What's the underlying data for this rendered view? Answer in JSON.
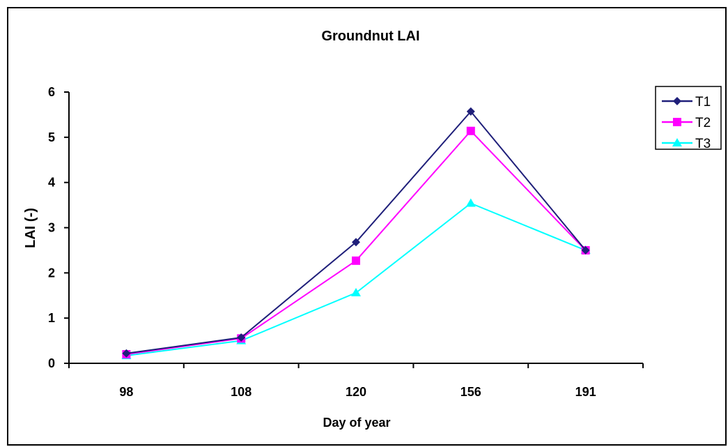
{
  "chart_data": {
    "type": "line",
    "title": "Groundnut LAI",
    "xlabel": "Day of year",
    "ylabel": "LAI (-)",
    "categories": [
      "98",
      "108",
      "120",
      "156",
      "191"
    ],
    "ylim": [
      0,
      6
    ],
    "yticks": [
      "0",
      "1",
      "2",
      "3",
      "4",
      "5",
      "6"
    ],
    "grid": false,
    "legend_position": "top-right",
    "series": [
      {
        "name": "T1",
        "values": [
          0.22,
          0.57,
          2.68,
          5.57,
          2.5
        ],
        "color": "#1f1f7a",
        "marker": "diamond"
      },
      {
        "name": "T2",
        "values": [
          0.2,
          0.55,
          2.27,
          5.14,
          2.5
        ],
        "color": "#ff00ff",
        "marker": "square"
      },
      {
        "name": "T3",
        "values": [
          0.17,
          0.5,
          1.56,
          3.54,
          2.5
        ],
        "color": "#00ffff",
        "marker": "triangle"
      }
    ]
  }
}
